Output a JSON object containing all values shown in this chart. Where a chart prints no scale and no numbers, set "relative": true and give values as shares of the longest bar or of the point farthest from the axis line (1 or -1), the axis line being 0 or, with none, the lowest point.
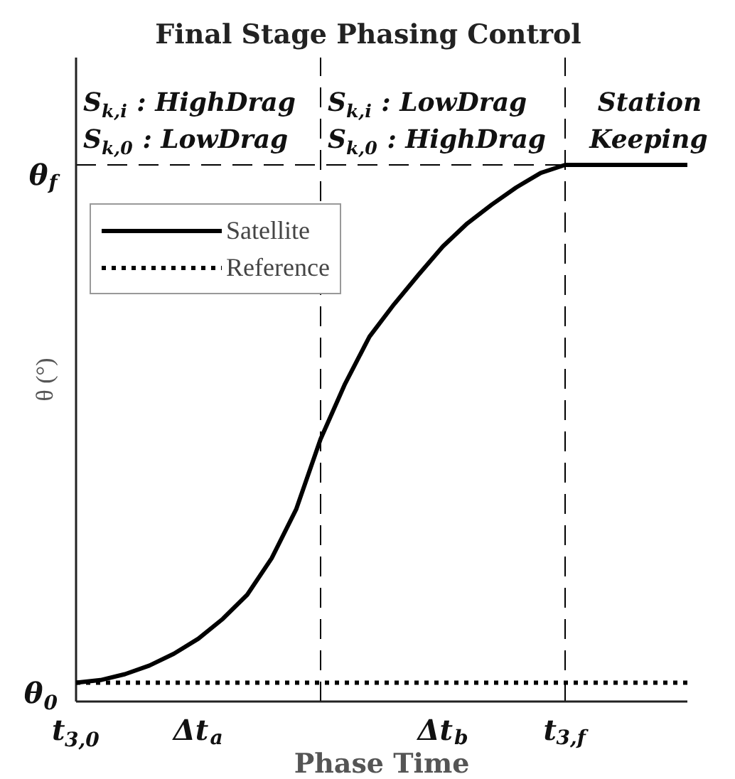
{
  "chart_data": {
    "type": "line",
    "relative": true,
    "title": "Final Stage Phasing Control",
    "xlabel": "Phase Time",
    "ylabel": "θ (°)",
    "categories": [
      "t$_{3,0}$",
      null,
      null,
      null,
      null,
      "Δt$_{a}$",
      null,
      null,
      null,
      null,
      null,
      null,
      null,
      null,
      null,
      "Δt$_{b}$",
      null,
      null,
      null,
      null,
      "t$_{3,f}$",
      null,
      null,
      null,
      null,
      null
    ],
    "series": [
      {
        "name": "Satellite",
        "color": "#000000",
        "line_style": "solid",
        "values": [
          0.035,
          0.04,
          0.051,
          0.067,
          0.089,
          0.117,
          0.154,
          0.199,
          0.267,
          0.358,
          0.489,
          0.592,
          0.68,
          0.74,
          0.795,
          0.848,
          0.891,
          0.926,
          0.958,
          0.985,
          1,
          1,
          1,
          1,
          1,
          1
        ]
      },
      {
        "name": "Reference",
        "color": "#000000",
        "line_style": "dotted",
        "values": [
          0.035,
          0.035,
          0.035,
          0.035,
          0.035,
          0.035,
          0.035,
          0.035,
          0.035,
          0.035,
          0.035,
          0.035,
          0.035,
          0.035,
          0.035,
          0.035,
          0.035,
          0.035,
          0.035,
          0.035,
          0.035,
          0.035,
          0.035,
          0.035,
          0.035,
          0.035
        ]
      }
    ],
    "ref_lines": [
      {
        "axis": "x",
        "value": "t$_{3,f}$",
        "color": "#000000",
        "line_style": "dashed"
      },
      {
        "axis": "y",
        "value": 1,
        "color": "#000000",
        "line_style": "dashed"
      }
    ],
    "annotations": [
      "S$_{k,i}$ : HighDrag",
      "S$_{k,0}$ : LowDrag",
      "S$_{k,i}$ : LowDrag",
      "S$_{k,0}$ : HighDrag",
      "Station\nKeeping",
      "θ$_{f}$",
      "θ$_{0}$"
    ],
    "legend": "top left",
    "grid": false
  }
}
